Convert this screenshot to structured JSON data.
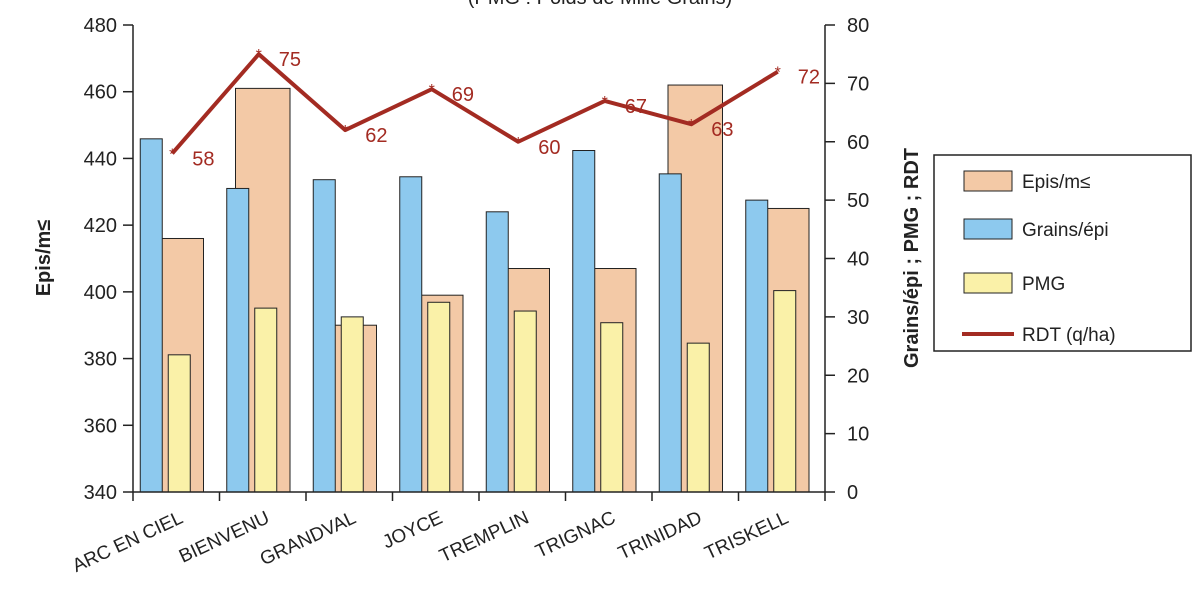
{
  "chart_data": {
    "type": "bar",
    "subtitle": "(PMG : Poids de Mille Grains)",
    "categories": [
      "ARC EN CIEL",
      "BIENVENU",
      "GRANDVAL",
      "JOYCE",
      "TREMPLIN",
      "TRIGNAC",
      "TRINIDAD",
      "TRISKELL"
    ],
    "ylabel_left": "Epis/m≤",
    "ylabel_right": "Grains/épi ; PMG ; RDT",
    "ylim_left": [
      340,
      480
    ],
    "yticks_left": [
      340,
      360,
      380,
      400,
      420,
      440,
      460,
      480
    ],
    "ylim_right": [
      0,
      80
    ],
    "yticks_right": [
      0,
      10,
      20,
      30,
      40,
      50,
      60,
      70,
      80
    ],
    "series": [
      {
        "name": "Epis/m≤",
        "axis": "left",
        "kind": "bar",
        "color": "#f3c9a6",
        "values": [
          416,
          461,
          390,
          399,
          407,
          407,
          462,
          425
        ]
      },
      {
        "name": "Grains/épi",
        "axis": "right",
        "kind": "bar",
        "color": "#8dc9ee",
        "values": [
          60.5,
          52,
          53.5,
          54,
          48,
          58.5,
          54.5,
          50
        ]
      },
      {
        "name": "PMG",
        "axis": "right",
        "kind": "bar",
        "color": "#faf1a8",
        "values": [
          23.5,
          31.5,
          30,
          32.5,
          31,
          29,
          25.5,
          34.5
        ]
      },
      {
        "name": "RDT (q/ha)",
        "axis": "right",
        "kind": "line",
        "color": "#a32b22",
        "values": [
          58,
          75,
          62,
          69,
          60,
          67,
          63,
          72
        ],
        "labels": [
          "58",
          "75",
          "62",
          "69",
          "60",
          "67",
          "63",
          "72"
        ]
      }
    ],
    "legend_position": "right",
    "grid": false
  }
}
